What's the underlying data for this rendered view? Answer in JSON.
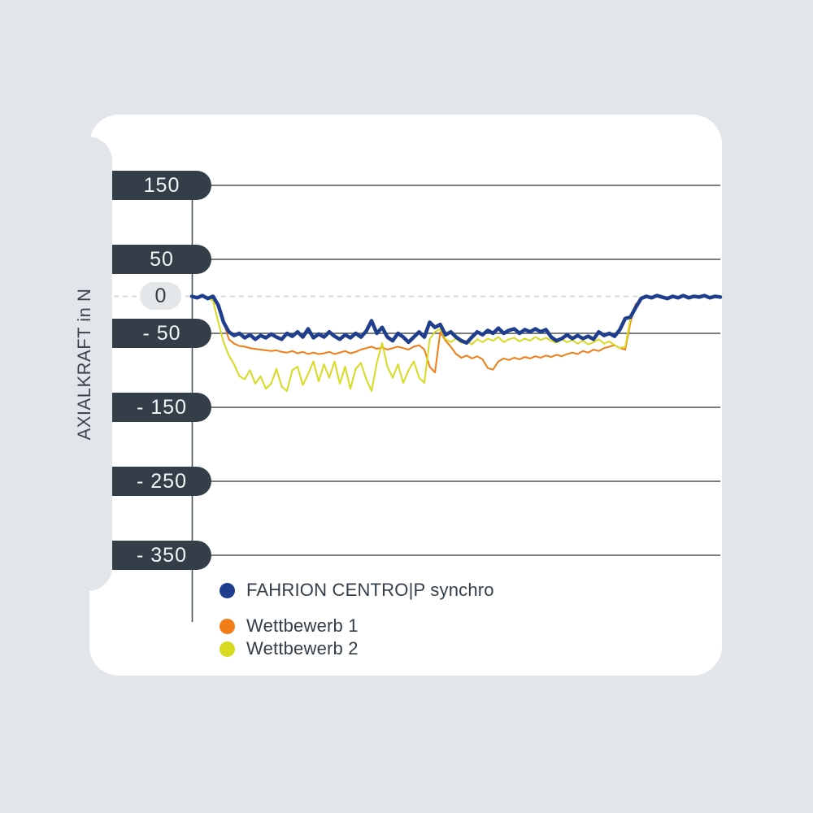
{
  "page": {
    "background_color": "#e2e5e9",
    "card_color": "#ffffff",
    "pill_dark_color": "#333e48",
    "pill_light_color": "#e4e7ea",
    "grid_color": "#49535c",
    "zero_dash_color": "#d5dade"
  },
  "y_axis": {
    "title": "AXIALKRAFT in N",
    "ticks": [
      {
        "label": "150",
        "value": 150,
        "style": "dark"
      },
      {
        "label": "50",
        "value": 50,
        "style": "dark"
      },
      {
        "label": "0",
        "value": 0,
        "style": "light"
      },
      {
        "label": "- 50",
        "value": -50,
        "style": "dark"
      },
      {
        "label": "- 150",
        "value": -150,
        "style": "dark"
      },
      {
        "label": "- 250",
        "value": -250,
        "style": "dark"
      },
      {
        "label": "- 350",
        "value": -350,
        "style": "dark"
      }
    ]
  },
  "legend": [
    {
      "label": "FAHRION CENTRO|P synchro",
      "color": "#1f3e8e"
    },
    {
      "label": "Wettbewerb 1",
      "color": "#f07d16"
    },
    {
      "label": "Wettbewerb 2",
      "color": "#d8da20"
    }
  ],
  "chart_data": {
    "type": "line",
    "title": "",
    "xlabel": "",
    "ylabel": "AXIALKRAFT in N",
    "ylim": [
      -400,
      200
    ],
    "y_ticks": [
      150,
      50,
      0,
      -50,
      -150,
      -250,
      -350
    ],
    "zero_line": "dashed",
    "grid": "horizontal-only",
    "legend_position": "bottom-left",
    "x_range": [
      0,
      100
    ],
    "series": [
      {
        "name": "FAHRION CENTRO|P synchro",
        "color": "#1f3e8e",
        "stroke_width": 4.5,
        "x_start": 0,
        "x_step": 1,
        "values": [
          0,
          -2,
          1,
          -3,
          0,
          -12,
          -35,
          -48,
          -53,
          -50,
          -56,
          -52,
          -58,
          -53,
          -56,
          -51,
          -55,
          -58,
          -50,
          -54,
          -48,
          -55,
          -44,
          -56,
          -51,
          -55,
          -48,
          -54,
          -58,
          -52,
          -56,
          -50,
          -55,
          -47,
          -33,
          -50,
          -42,
          -55,
          -60,
          -50,
          -55,
          -62,
          -55,
          -48,
          -55,
          -35,
          -42,
          -38,
          -52,
          -48,
          -55,
          -60,
          -63,
          -55,
          -48,
          -52,
          -46,
          -50,
          -43,
          -50,
          -46,
          -44,
          -50,
          -45,
          -48,
          -44,
          -48,
          -45,
          -55,
          -60,
          -57,
          -52,
          -57,
          -53,
          -57,
          -54,
          -58,
          -48,
          -53,
          -50,
          -54,
          -45,
          -30,
          -28,
          -15,
          -3,
          0,
          -2,
          1,
          -1,
          -3,
          0,
          -2,
          1,
          -2,
          0,
          -1,
          1,
          -2,
          0,
          -1
        ]
      },
      {
        "name": "Wettbewerb 1",
        "color": "#f07d16",
        "stroke_width": 2,
        "x_start": 2,
        "x_step": 1,
        "values": [
          0,
          -1,
          -3,
          -15,
          -35,
          -58,
          -64,
          -67,
          -68,
          -70,
          -71,
          -72,
          -73,
          -74,
          -73,
          -75,
          -76,
          -74,
          -77,
          -75,
          -78,
          -76,
          -78,
          -77,
          -75,
          -78,
          -76,
          -74,
          -77,
          -75,
          -72,
          -70,
          -68,
          -71,
          -69,
          -72,
          -70,
          -68,
          -70,
          -72,
          -68,
          -66,
          -72,
          -95,
          -103,
          -48,
          -60,
          -68,
          -78,
          -83,
          -80,
          -84,
          -81,
          -85,
          -97,
          -99,
          -88,
          -84,
          -86,
          -83,
          -85,
          -82,
          -84,
          -81,
          -83,
          -80,
          -82,
          -79,
          -81,
          -78,
          -76,
          -78,
          -74,
          -76,
          -72,
          -74,
          -70,
          -68,
          -66,
          -70,
          -72,
          -35,
          -10
        ]
      },
      {
        "name": "Wettbewerb 2",
        "color": "#d8da20",
        "stroke_width": 2,
        "x_start": 2,
        "x_step": 1,
        "values": [
          0,
          -2,
          -6,
          -35,
          -62,
          -80,
          -92,
          -108,
          -112,
          -100,
          -118,
          -108,
          -125,
          -118,
          -98,
          -122,
          -128,
          -100,
          -95,
          -120,
          -105,
          -88,
          -115,
          -92,
          -110,
          -88,
          -118,
          -95,
          -125,
          -98,
          -90,
          -112,
          -128,
          -90,
          -63,
          -95,
          -110,
          -92,
          -117,
          -100,
          -88,
          -110,
          -117,
          -58,
          -48,
          -44,
          -58,
          -62,
          -57,
          -63,
          -60,
          -65,
          -58,
          -62,
          -57,
          -60,
          -55,
          -62,
          -58,
          -56,
          -61,
          -57,
          -60,
          -55,
          -59,
          -56,
          -60,
          -63,
          -58,
          -62,
          -59,
          -64,
          -60,
          -65,
          -62,
          -58,
          -64,
          -61,
          -66,
          -70,
          -68,
          -30,
          -15
        ]
      }
    ]
  }
}
